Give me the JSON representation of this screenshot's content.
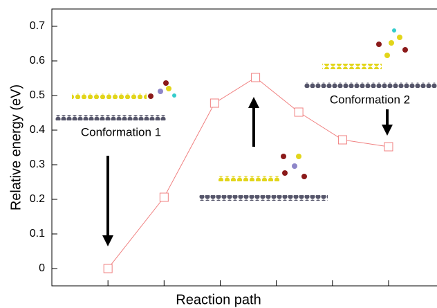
{
  "chart_data": {
    "type": "line",
    "xlabel": "Reaction path",
    "ylabel": "Relative energy (eV)",
    "x": [
      1,
      2,
      2.9,
      3.63,
      4.4,
      5.18,
      6
    ],
    "series": [
      {
        "color": "#f08080",
        "values": [
          0,
          0.206,
          0.478,
          0.552,
          0.452,
          0.372,
          0.352
        ]
      }
    ],
    "xlim": [
      0,
      6.9
    ],
    "xticks": [
      1,
      2,
      3,
      4,
      5,
      6
    ],
    "ylim": [
      -0.05,
      0.75
    ],
    "yticks": [
      0,
      0.1,
      0.2,
      0.3,
      0.4,
      0.5,
      0.6,
      0.7
    ],
    "annotations": [
      "Conformation 1",
      "Conformation 2"
    ]
  }
}
